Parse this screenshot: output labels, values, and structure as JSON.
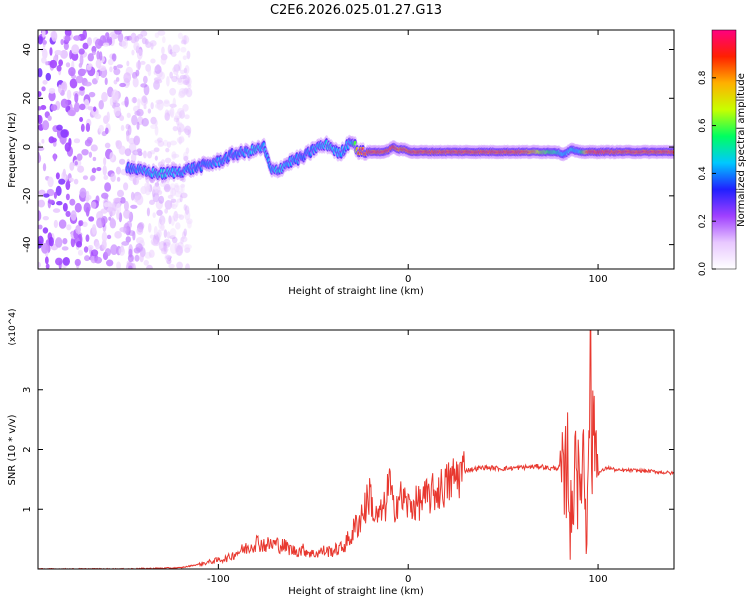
{
  "title": "C2E6.2026.025.01.27.G13",
  "chart_data": [
    {
      "type": "heatmap",
      "title": "C2E6.2026.025.01.27.G13",
      "xlabel": "Height of straight line (km)",
      "ylabel": "Frequency (Hz)",
      "xlim": [
        -195,
        140
      ],
      "ylim": [
        -50,
        48
      ],
      "x_ticks": [
        -100,
        0,
        100
      ],
      "x_tick_labels": [
        "-100",
        "0",
        "100"
      ],
      "y_ticks": [
        -40,
        -20,
        0,
        20,
        40
      ],
      "y_tick_labels": [
        "-40",
        "-20",
        "0",
        "20",
        "40"
      ],
      "colorbar": {
        "label": "Normalized spectral amplitude",
        "range": [
          0.0,
          1.0
        ],
        "ticks": [
          0.0,
          0.2,
          0.4,
          0.6,
          0.8
        ],
        "tick_labels": [
          "0.0",
          "0.2",
          "0.4",
          "0.6",
          "0.8"
        ],
        "colors": [
          "#ffffff",
          "#e8c8ff",
          "#a040ff",
          "#2020ff",
          "#00c8ff",
          "#00ff60",
          "#c8ff00",
          "#ffb000",
          "#ff2000",
          "#ff0080"
        ]
      },
      "ridge": {
        "description_values": "dominant frequency track (Hz) vs height (km)",
        "x": [
          -148,
          -140,
          -130,
          -120,
          -110,
          -100,
          -92,
          -85,
          -80,
          -76,
          -72,
          -68,
          -62,
          -55,
          -48,
          -42,
          -36,
          -30,
          -26,
          -22,
          -18,
          -12,
          -8,
          -5,
          -2,
          2,
          8,
          20,
          40,
          60,
          72,
          78,
          82,
          86,
          90,
          95,
          100,
          110,
          120,
          130,
          140
        ],
        "y": [
          -8,
          -10,
          -11,
          -10,
          -8,
          -6,
          -3,
          -2,
          -1,
          0,
          -10,
          -9,
          -6,
          -4,
          0,
          1,
          -3,
          3,
          -2,
          -2,
          -2,
          -2,
          0,
          -1,
          -1,
          -2,
          -2,
          -2,
          -2,
          -2,
          -2,
          -2,
          -3,
          -1,
          -2,
          -2,
          -2,
          -2,
          -2,
          -2,
          -2
        ],
        "amplitude": [
          0.45,
          0.5,
          0.55,
          0.5,
          0.45,
          0.5,
          0.45,
          0.5,
          0.55,
          0.5,
          0.5,
          0.55,
          0.5,
          0.45,
          0.5,
          0.55,
          0.5,
          0.5,
          0.9,
          0.95,
          0.95,
          0.95,
          0.98,
          0.9,
          0.95,
          0.95,
          0.95,
          0.95,
          0.95,
          0.95,
          0.7,
          0.6,
          0.5,
          0.55,
          0.5,
          0.95,
          0.98,
          0.95,
          0.95,
          0.95,
          0.95
        ]
      }
    },
    {
      "type": "line",
      "xlabel": "Height of straight line (km)",
      "ylabel": "SNR (10 * v/v)",
      "y_multiplier": "(x10^4)",
      "xlim": [
        -195,
        140
      ],
      "ylim": [
        0,
        4.0
      ],
      "x_ticks": [
        -100,
        0,
        100
      ],
      "x_tick_labels": [
        "-100",
        "0",
        "100"
      ],
      "y_ticks": [
        1,
        2,
        3
      ],
      "y_tick_labels": [
        "1",
        "2",
        "3"
      ],
      "series": [
        {
          "name": "SNR",
          "color": "#e8382f",
          "x": [
            -195,
            -150,
            -120,
            -110,
            -100,
            -95,
            -90,
            -85,
            -80,
            -75,
            -70,
            -65,
            -60,
            -55,
            -50,
            -45,
            -40,
            -35,
            -30,
            -28,
            -26,
            -24,
            -22,
            -20,
            -18,
            -15,
            -12,
            -10,
            -8,
            -5,
            -2,
            0,
            5,
            10,
            15,
            20,
            25,
            30,
            40,
            50,
            60,
            70,
            75,
            80,
            82,
            84,
            86,
            88,
            90,
            92,
            94,
            95,
            96,
            98,
            100,
            105,
            110,
            120,
            130,
            140
          ],
          "y": [
            0.0,
            0.0,
            0.02,
            0.08,
            0.15,
            0.18,
            0.28,
            0.35,
            0.45,
            0.4,
            0.42,
            0.38,
            0.3,
            0.32,
            0.25,
            0.3,
            0.3,
            0.35,
            0.55,
            0.7,
            0.8,
            0.95,
            1.1,
            1.3,
            0.85,
            0.9,
            1.05,
            1.5,
            1.0,
            1.2,
            1.15,
            1.05,
            1.1,
            1.2,
            1.3,
            1.4,
            1.55,
            1.65,
            1.7,
            1.68,
            1.7,
            1.72,
            1.68,
            1.7,
            1.2,
            2.0,
            0.4,
            2.4,
            1.0,
            2.2,
            0.6,
            3.0,
            1.5,
            2.5,
            1.6,
            1.7,
            1.65,
            1.65,
            1.63,
            1.6
          ]
        }
      ],
      "peak_annotation": {
        "x": 96,
        "y": 4.0
      }
    }
  ]
}
